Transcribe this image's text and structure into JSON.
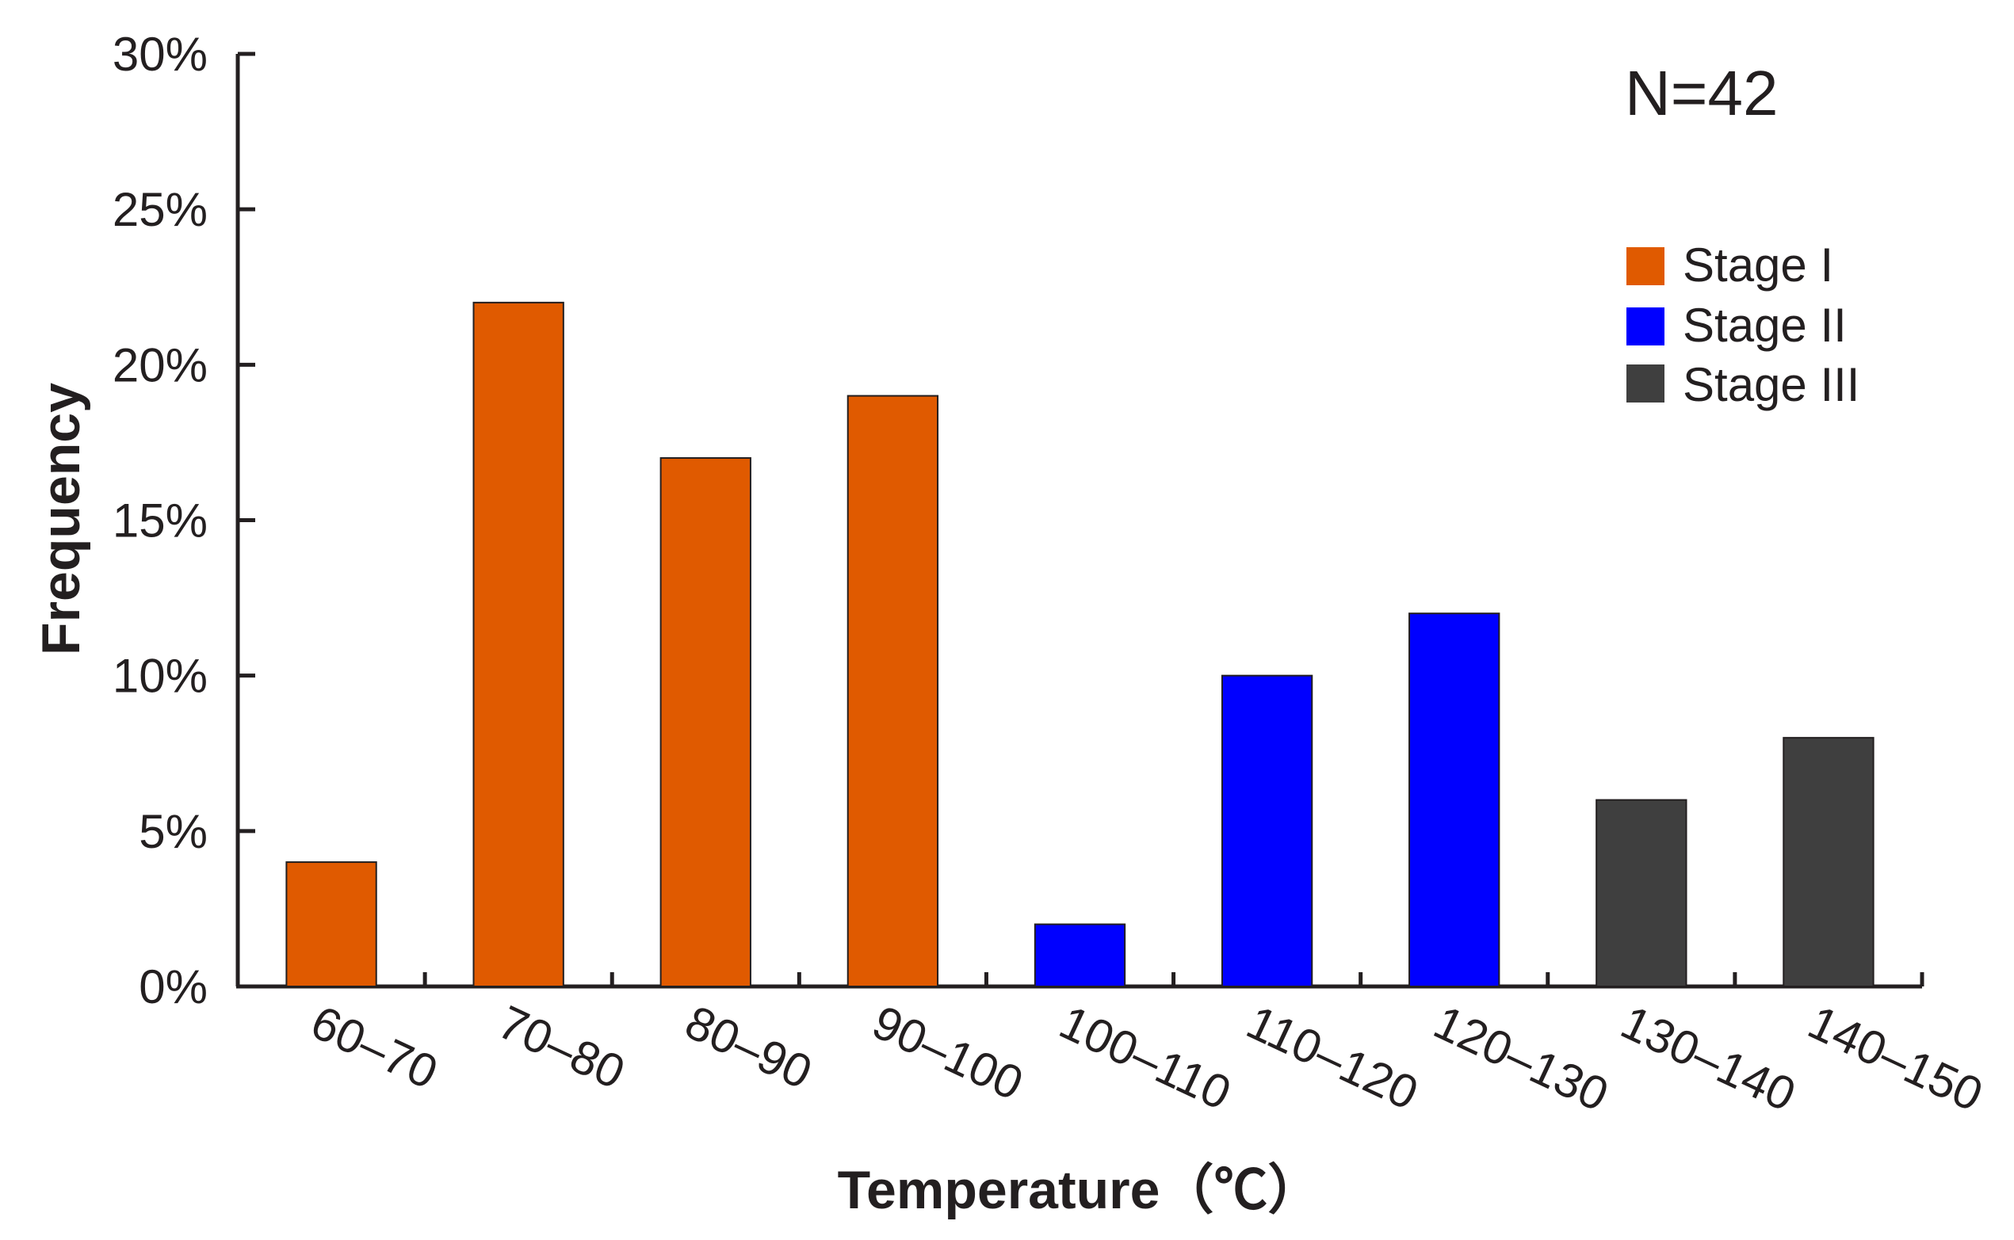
{
  "chart_data": {
    "type": "bar",
    "title": "",
    "xlabel": "Temperature（℃）",
    "ylabel": "Frequency",
    "annotation": "N=42",
    "ylim": [
      0,
      30
    ],
    "yticks": [
      0,
      5,
      10,
      15,
      20,
      25,
      30
    ],
    "ytick_labels": [
      "0%",
      "5%",
      "10%",
      "15%",
      "20%",
      "25%",
      "30%"
    ],
    "categories": [
      "60–70",
      "70–80",
      "80–90",
      "90–100",
      "100–110",
      "110–120",
      "120–130",
      "130–140",
      "140–150"
    ],
    "values": [
      4,
      22,
      17,
      19,
      2,
      10,
      12,
      6,
      8
    ],
    "bar_stage": [
      0,
      0,
      0,
      0,
      1,
      1,
      1,
      2,
      2
    ],
    "legend_position": "top-right",
    "series": [
      {
        "name": "Stage I",
        "color": "#e05a00"
      },
      {
        "name": "Stage II",
        "color": "#0000ff"
      },
      {
        "name": "Stage III",
        "color": "#3f3f3f"
      }
    ]
  }
}
